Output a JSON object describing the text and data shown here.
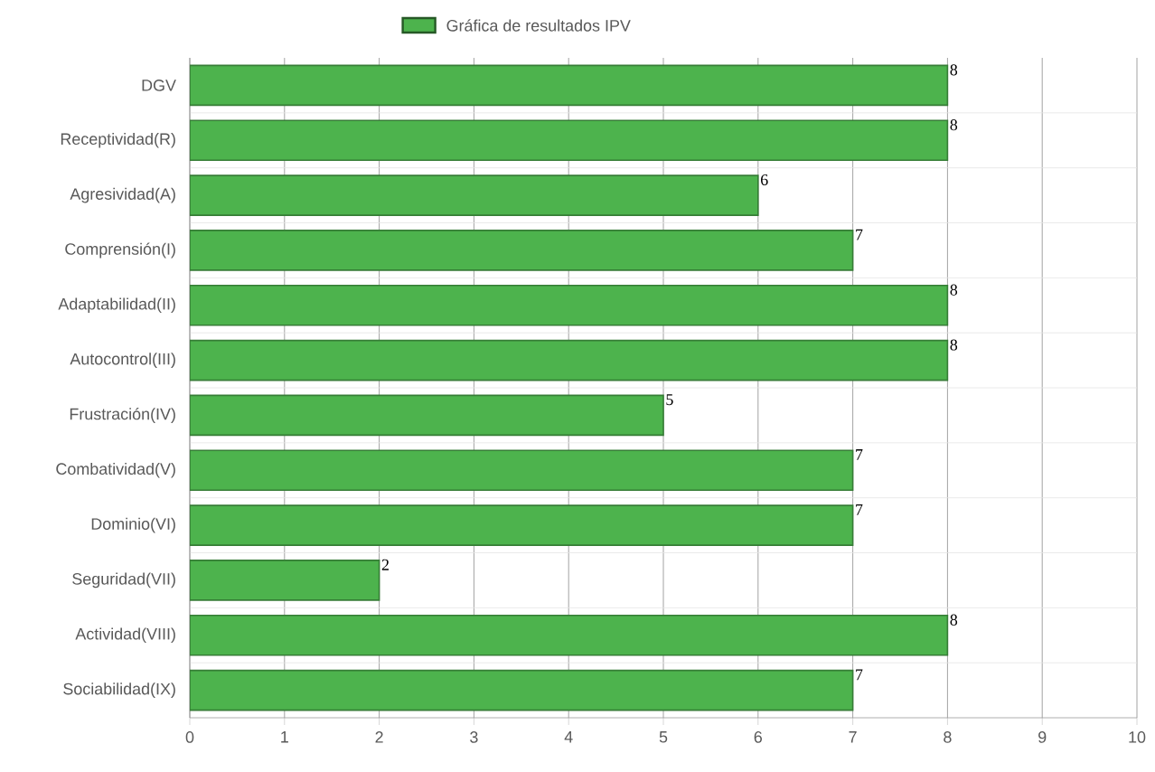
{
  "chart_data": {
    "type": "bar",
    "orientation": "horizontal",
    "categories": [
      "DGV",
      "Receptividad(R)",
      "Agresividad(A)",
      "Comprensión(I)",
      "Adaptabilidad(II)",
      "Autocontrol(III)",
      "Frustración(IV)",
      "Combatividad(V)",
      "Dominio(VI)",
      "Seguridad(VII)",
      "Actividad(VIII)",
      "Sociabilidad(IX)"
    ],
    "series": [
      {
        "name": "Gráfica de resultados IPV",
        "color": "#4db34d",
        "values": [
          8,
          8,
          6,
          7,
          8,
          8,
          5,
          7,
          7,
          2,
          8,
          7
        ]
      }
    ],
    "xlim": [
      0,
      10
    ],
    "xticks": [
      0,
      1,
      2,
      3,
      4,
      5,
      6,
      7,
      8,
      9,
      10
    ],
    "grid": true,
    "legend": "top",
    "data_labels": true
  }
}
